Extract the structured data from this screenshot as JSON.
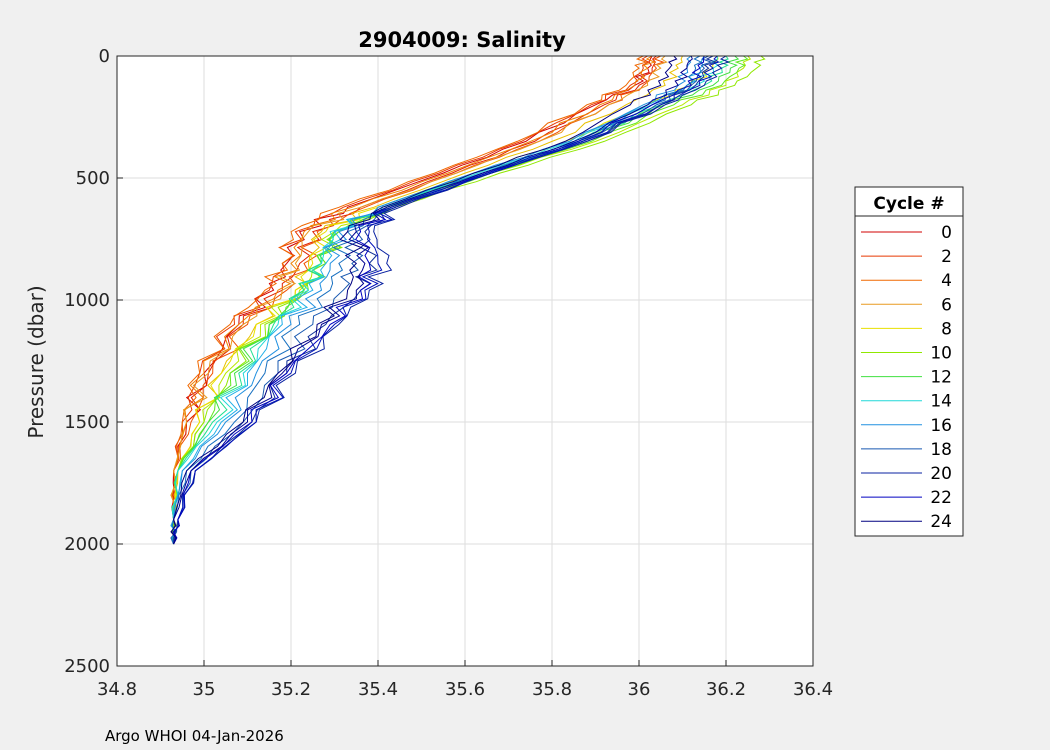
{
  "chart_data": {
    "type": "line",
    "title": "2904009:  Salinity",
    "xlabel": "",
    "ylabel": "Pressure (dbar)",
    "xlim": [
      34.8,
      36.4
    ],
    "ylim": [
      0,
      2500
    ],
    "y_reversed": true,
    "grid": true,
    "xticks": [
      34.8,
      35,
      35.2,
      35.4,
      35.6,
      35.8,
      36,
      36.2,
      36.4
    ],
    "xtick_labels": [
      "34.8",
      "35",
      "35.2",
      "35.4",
      "35.6",
      "35.8",
      "36",
      "36.2",
      "36.4"
    ],
    "yticks": [
      0,
      500,
      1000,
      1500,
      2000,
      2500
    ],
    "ytick_labels": [
      "0",
      "500",
      "1000",
      "1500",
      "2000",
      "2500"
    ],
    "legend": {
      "title": "Cycle #",
      "position": "right",
      "entries": [
        "0",
        "2",
        "4",
        "6",
        "8",
        "10",
        "12",
        "14",
        "16",
        "18",
        "20",
        "22",
        "24"
      ]
    },
    "series": [
      {
        "cycle": 0,
        "color": "#d00000",
        "x": [
          36.03,
          36.02,
          35.99,
          35.9,
          35.74,
          35.55,
          35.33,
          35.22,
          35.19,
          35.16,
          35.08,
          35.0,
          34.96,
          34.93,
          34.93,
          34.93
        ],
        "y": [
          0,
          50,
          120,
          200,
          350,
          480,
          620,
          720,
          850,
          960,
          1100,
          1300,
          1500,
          1700,
          1900,
          2000
        ]
      },
      {
        "cycle": 1,
        "color": "#e02000",
        "x": [
          36.04,
          36.03,
          36.0,
          35.92,
          35.76,
          35.57,
          35.36,
          35.25,
          35.22,
          35.18,
          35.09,
          35.01,
          34.96,
          34.93,
          34.93,
          34.93
        ],
        "y": [
          0,
          50,
          120,
          200,
          350,
          480,
          620,
          720,
          850,
          960,
          1100,
          1300,
          1500,
          1700,
          1900,
          2000
        ]
      },
      {
        "cycle": 2,
        "color": "#e83800",
        "x": [
          36.02,
          36.01,
          35.98,
          35.89,
          35.73,
          35.54,
          35.32,
          35.21,
          35.18,
          35.15,
          35.07,
          34.99,
          34.95,
          34.93,
          34.93,
          34.93
        ],
        "y": [
          0,
          50,
          120,
          200,
          350,
          480,
          620,
          720,
          850,
          960,
          1100,
          1300,
          1500,
          1700,
          1900,
          2000
        ]
      },
      {
        "cycle": 3,
        "color": "#f05000",
        "x": [
          36.05,
          36.04,
          36.01,
          35.93,
          35.77,
          35.58,
          35.37,
          35.26,
          35.23,
          35.19,
          35.1,
          35.02,
          34.97,
          34.93,
          34.93,
          34.93
        ],
        "y": [
          0,
          50,
          120,
          200,
          350,
          480,
          620,
          720,
          850,
          960,
          1100,
          1300,
          1500,
          1700,
          1900,
          2000
        ]
      },
      {
        "cycle": 4,
        "color": "#f06800",
        "x": [
          36.01,
          36.0,
          35.97,
          35.88,
          35.72,
          35.53,
          35.31,
          35.2,
          35.18,
          35.14,
          35.06,
          34.99,
          34.95,
          34.93,
          34.93,
          34.93
        ],
        "y": [
          0,
          50,
          120,
          200,
          350,
          480,
          620,
          720,
          850,
          960,
          1100,
          1300,
          1500,
          1700,
          1900,
          2000
        ]
      },
      {
        "cycle": 5,
        "color": "#f08000",
        "x": [
          36.03,
          36.02,
          35.99,
          35.91,
          35.75,
          35.56,
          35.34,
          35.23,
          35.2,
          35.17,
          35.08,
          35.0,
          34.96,
          34.93,
          34.93,
          34.93
        ],
        "y": [
          0,
          50,
          120,
          200,
          350,
          480,
          620,
          720,
          850,
          960,
          1100,
          1300,
          1500,
          1700,
          1900,
          2000
        ]
      },
      {
        "cycle": 6,
        "color": "#e89a20",
        "x": [
          36.06,
          36.05,
          36.02,
          35.93,
          35.77,
          35.58,
          35.36,
          35.24,
          35.21,
          35.18,
          35.09,
          35.01,
          34.96,
          34.93,
          34.93,
          34.93
        ],
        "y": [
          0,
          50,
          120,
          200,
          350,
          480,
          620,
          720,
          850,
          960,
          1100,
          1300,
          1500,
          1700,
          1900,
          2000
        ]
      },
      {
        "cycle": 7,
        "color": "#e8c000",
        "x": [
          36.1,
          36.09,
          36.06,
          35.97,
          35.8,
          35.6,
          35.39,
          35.27,
          35.24,
          35.21,
          35.12,
          35.04,
          34.99,
          34.94,
          34.93,
          34.93
        ],
        "y": [
          0,
          50,
          120,
          200,
          350,
          480,
          620,
          720,
          850,
          960,
          1100,
          1300,
          1500,
          1700,
          1900,
          2000
        ]
      },
      {
        "cycle": 8,
        "color": "#e8e000",
        "x": [
          36.18,
          36.17,
          36.12,
          36.02,
          35.83,
          35.62,
          35.4,
          35.28,
          35.25,
          35.21,
          35.12,
          35.04,
          34.99,
          34.94,
          34.93,
          34.93
        ],
        "y": [
          0,
          50,
          120,
          200,
          350,
          480,
          620,
          720,
          850,
          960,
          1100,
          1300,
          1500,
          1700,
          1900,
          2000
        ]
      },
      {
        "cycle": 9,
        "color": "#b8e800",
        "x": [
          36.25,
          36.24,
          36.2,
          36.1,
          35.9,
          35.66,
          35.43,
          35.3,
          35.27,
          35.22,
          35.13,
          35.05,
          35.0,
          34.94,
          34.93,
          34.93
        ],
        "y": [
          0,
          50,
          120,
          200,
          350,
          480,
          620,
          720,
          850,
          960,
          1100,
          1300,
          1500,
          1700,
          1900,
          2000
        ]
      },
      {
        "cycle": 10,
        "color": "#90e800",
        "x": [
          36.28,
          36.27,
          36.22,
          36.12,
          35.92,
          35.68,
          35.44,
          35.31,
          35.28,
          35.23,
          35.14,
          35.06,
          35.0,
          34.94,
          34.93,
          34.93
        ],
        "y": [
          0,
          50,
          120,
          200,
          350,
          480,
          620,
          720,
          850,
          960,
          1100,
          1300,
          1500,
          1700,
          1900,
          2000
        ]
      },
      {
        "cycle": 11,
        "color": "#60e820",
        "x": [
          36.24,
          36.23,
          36.19,
          36.08,
          35.89,
          35.66,
          35.43,
          35.31,
          35.28,
          35.24,
          35.15,
          35.06,
          35.01,
          34.94,
          34.93,
          34.93
        ],
        "y": [
          0,
          50,
          120,
          200,
          350,
          480,
          620,
          720,
          850,
          960,
          1100,
          1300,
          1500,
          1700,
          1900,
          2000
        ]
      },
      {
        "cycle": 12,
        "color": "#40e040",
        "x": [
          36.22,
          36.21,
          36.17,
          36.06,
          35.87,
          35.65,
          35.42,
          35.3,
          35.27,
          35.23,
          35.15,
          35.07,
          35.01,
          34.94,
          34.93,
          34.93
        ],
        "y": [
          0,
          50,
          120,
          200,
          350,
          480,
          620,
          720,
          850,
          960,
          1100,
          1300,
          1500,
          1700,
          1900,
          2000
        ]
      },
      {
        "cycle": 13,
        "color": "#20e090",
        "x": [
          36.2,
          36.19,
          36.15,
          36.05,
          35.86,
          35.64,
          35.41,
          35.3,
          35.27,
          35.23,
          35.16,
          35.08,
          35.02,
          34.94,
          34.93,
          34.93
        ],
        "y": [
          0,
          50,
          120,
          200,
          350,
          480,
          620,
          720,
          850,
          960,
          1100,
          1300,
          1500,
          1700,
          1900,
          2000
        ]
      },
      {
        "cycle": 14,
        "color": "#20d8d8",
        "x": [
          36.18,
          36.17,
          36.13,
          36.03,
          35.85,
          35.63,
          35.41,
          35.29,
          35.27,
          35.24,
          35.17,
          35.09,
          35.03,
          34.94,
          34.93,
          34.93
        ],
        "y": [
          0,
          50,
          120,
          200,
          350,
          480,
          620,
          720,
          850,
          960,
          1100,
          1300,
          1500,
          1700,
          1900,
          2000
        ]
      },
      {
        "cycle": 15,
        "color": "#20b0e8",
        "x": [
          36.15,
          36.14,
          36.11,
          36.02,
          35.84,
          35.62,
          35.4,
          35.3,
          35.28,
          35.25,
          35.18,
          35.1,
          35.04,
          34.95,
          34.93,
          34.93
        ],
        "y": [
          0,
          50,
          120,
          200,
          350,
          480,
          620,
          720,
          850,
          960,
          1100,
          1300,
          1500,
          1700,
          1900,
          2000
        ]
      },
      {
        "cycle": 16,
        "color": "#2090e0",
        "x": [
          36.12,
          36.11,
          36.09,
          36.01,
          35.84,
          35.62,
          35.4,
          35.31,
          35.29,
          35.27,
          35.2,
          35.12,
          35.05,
          34.95,
          34.93,
          34.93
        ],
        "y": [
          0,
          50,
          120,
          200,
          350,
          480,
          620,
          720,
          850,
          960,
          1100,
          1300,
          1500,
          1700,
          1900,
          2000
        ]
      },
      {
        "cycle": 17,
        "color": "#1870c0",
        "x": [
          36.14,
          36.13,
          36.11,
          36.03,
          35.86,
          35.64,
          35.42,
          35.33,
          35.31,
          35.29,
          35.22,
          35.14,
          35.07,
          34.96,
          34.93,
          34.93
        ],
        "y": [
          0,
          50,
          120,
          200,
          350,
          480,
          620,
          720,
          850,
          960,
          1100,
          1300,
          1500,
          1700,
          1900,
          2000
        ]
      },
      {
        "cycle": 18,
        "color": "#1858b0",
        "x": [
          36.16,
          36.15,
          36.12,
          36.04,
          35.87,
          35.65,
          35.43,
          35.35,
          35.34,
          35.32,
          35.25,
          35.17,
          35.09,
          34.97,
          34.94,
          34.93
        ],
        "y": [
          0,
          50,
          120,
          200,
          350,
          480,
          620,
          720,
          850,
          960,
          1100,
          1300,
          1500,
          1700,
          1900,
          2000
        ]
      },
      {
        "cycle": 19,
        "color": "#103098",
        "x": [
          36.17,
          36.16,
          36.13,
          36.05,
          35.88,
          35.66,
          35.44,
          35.37,
          35.38,
          35.36,
          35.28,
          35.19,
          35.11,
          34.98,
          34.94,
          34.93
        ],
        "y": [
          0,
          50,
          120,
          200,
          350,
          480,
          620,
          720,
          850,
          960,
          1100,
          1300,
          1500,
          1700,
          1900,
          2000
        ]
      },
      {
        "cycle": 20,
        "color": "#0820a0",
        "x": [
          36.2,
          36.19,
          36.15,
          36.06,
          35.88,
          35.66,
          35.45,
          35.39,
          35.42,
          35.38,
          35.31,
          35.21,
          35.12,
          34.98,
          34.94,
          34.93
        ],
        "y": [
          0,
          50,
          120,
          200,
          350,
          480,
          620,
          720,
          850,
          960,
          1100,
          1300,
          1500,
          1700,
          1900,
          2000
        ]
      },
      {
        "cycle": 21,
        "color": "#0010b8",
        "x": [
          36.18,
          36.17,
          36.14,
          36.05,
          35.87,
          35.66,
          35.44,
          35.38,
          35.4,
          35.37,
          35.3,
          35.2,
          35.12,
          34.98,
          34.94,
          34.93
        ],
        "y": [
          0,
          50,
          120,
          200,
          350,
          480,
          620,
          720,
          850,
          960,
          1100,
          1300,
          1500,
          1700,
          1900,
          2000
        ]
      },
      {
        "cycle": 22,
        "color": "#0000c0",
        "x": [
          36.15,
          36.14,
          36.12,
          36.03,
          35.86,
          35.65,
          35.43,
          35.36,
          35.38,
          35.36,
          35.29,
          35.19,
          35.11,
          34.97,
          34.94,
          34.93
        ],
        "y": [
          0,
          50,
          120,
          200,
          350,
          480,
          620,
          720,
          850,
          960,
          1100,
          1300,
          1500,
          1700,
          1900,
          2000
        ]
      },
      {
        "cycle": 23,
        "color": "#000090",
        "x": [
          36.12,
          36.11,
          36.09,
          36.02,
          35.85,
          35.64,
          35.42,
          35.35,
          35.37,
          35.35,
          35.27,
          35.18,
          35.1,
          34.97,
          34.93,
          34.93
        ],
        "y": [
          0,
          50,
          120,
          200,
          350,
          480,
          620,
          720,
          850,
          960,
          1100,
          1300,
          1500,
          1700,
          1900,
          2000
        ]
      },
      {
        "cycle": 24,
        "color": "#000080",
        "x": [
          36.08,
          36.07,
          36.05,
          35.98,
          35.83,
          35.62,
          35.41,
          35.33,
          35.35,
          35.33,
          35.26,
          35.17,
          35.09,
          34.96,
          34.93,
          34.93
        ],
        "y": [
          0,
          50,
          120,
          200,
          350,
          480,
          620,
          720,
          850,
          960,
          1100,
          1300,
          1500,
          1700,
          1900,
          2000
        ]
      }
    ],
    "legend_colors": [
      "#d00000",
      "#e83800",
      "#f06800",
      "#e89a20",
      "#e8e000",
      "#90e800",
      "#40e040",
      "#20d8d8",
      "#2090e0",
      "#1858b0",
      "#0820a0",
      "#0000c0",
      "#000080"
    ]
  },
  "footer": {
    "text": "Argo WHOI 04-Jan-2026"
  }
}
